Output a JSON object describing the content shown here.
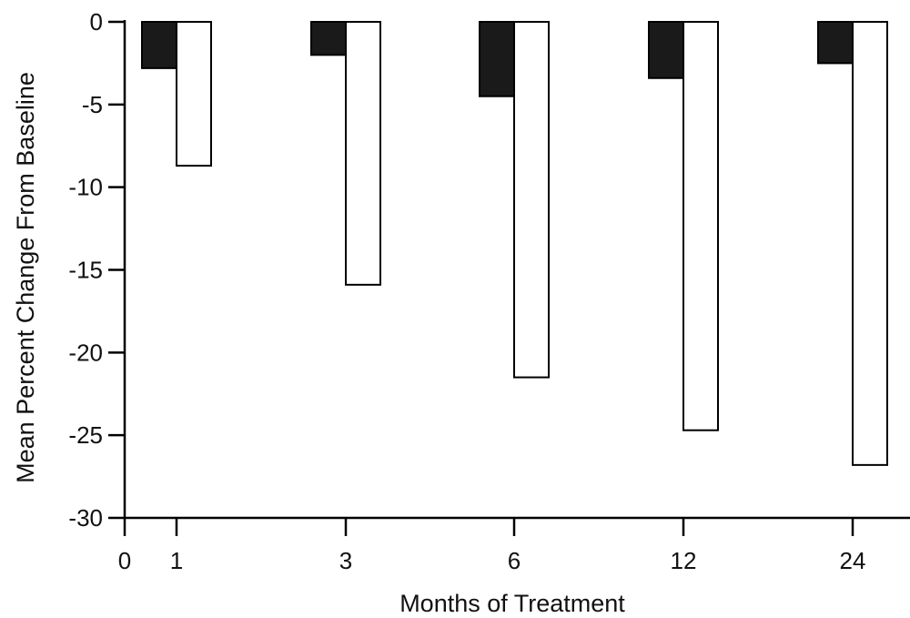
{
  "chart_data": {
    "type": "bar",
    "categories": [
      "1",
      "3",
      "6",
      "12",
      "24"
    ],
    "series": [
      {
        "color": "#1a1a1a",
        "values": [
          -2.8,
          -2.0,
          -4.5,
          -3.4,
          -2.5
        ]
      },
      {
        "color": "#ffffff",
        "values": [
          -8.7,
          -15.9,
          -21.5,
          -24.7,
          -26.8
        ]
      }
    ],
    "x_origin_label": "0",
    "xlabel": "Months of Treatment",
    "ylabel": "Mean Percent Change From Baseline",
    "ylim": [
      -30,
      0
    ],
    "yticks": [
      0,
      -5,
      -10,
      -15,
      -20,
      -25,
      -30
    ],
    "legend": "none",
    "grid": false
  }
}
